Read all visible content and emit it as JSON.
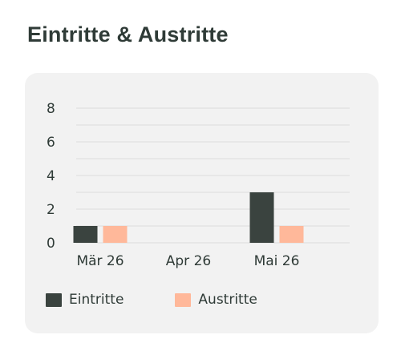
{
  "title": "Eintritte & Austritte",
  "chart_data": {
    "type": "bar",
    "categories": [
      "Mär 26",
      "Apr 26",
      "Mai 26"
    ],
    "series": [
      {
        "name": "Eintritte",
        "values": [
          1,
          0,
          3
        ],
        "color": "#3a433f"
      },
      {
        "name": "Austritte",
        "values": [
          1,
          0,
          1
        ],
        "color": "#ffb89a"
      }
    ],
    "yticks": [
      0,
      2,
      4,
      6,
      8
    ],
    "ylim": [
      0,
      8
    ],
    "grid": true,
    "legend_position": "bottom-left"
  }
}
